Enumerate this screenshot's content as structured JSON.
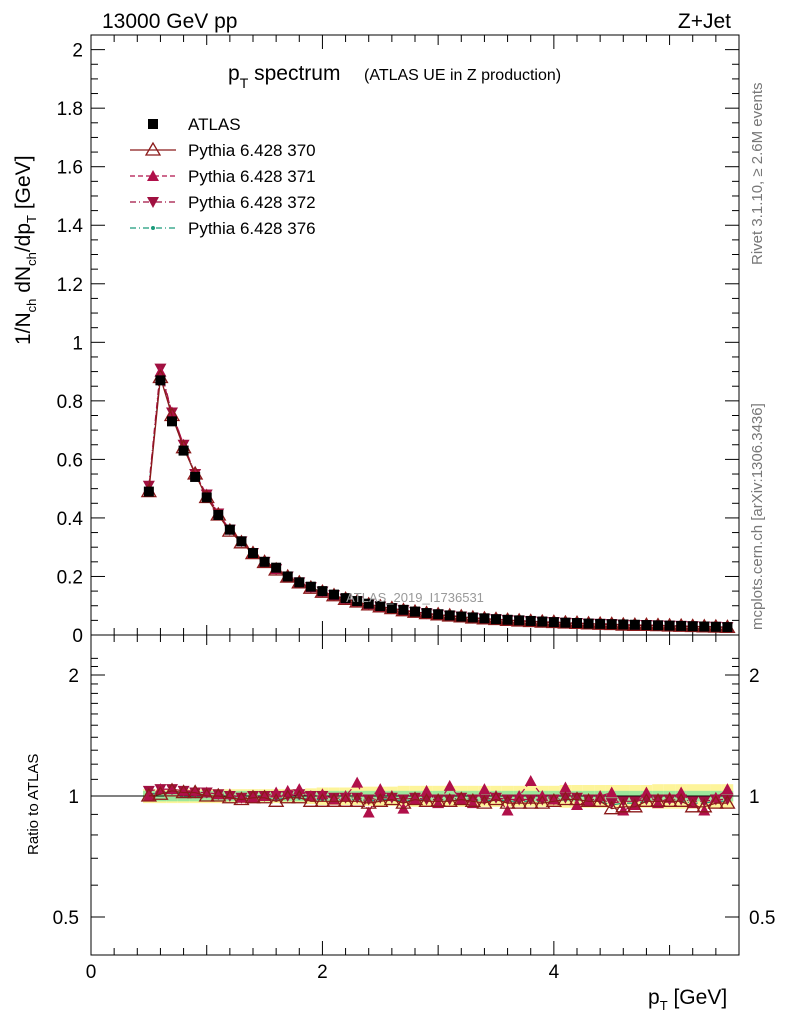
{
  "header": {
    "left": "13000 GeV pp",
    "right": "Z+Jet"
  },
  "side_labels": {
    "rivet": "Rivet 3.1.10, ≥ 2.6M events",
    "mcplots": "mcplots.cern.ch [arXiv:1306.3436]"
  },
  "title": {
    "main": "p",
    "main_sub": "T",
    "main_rest": " spectrum",
    "detail": "(ATLAS UE in Z production)"
  },
  "watermark": "ATLAS_2019_I1736531",
  "upper_ylabel": "1/N_ch dN_ch/dp_T [GeV]",
  "lower_ylabel": "Ratio to ATLAS",
  "xlabel": "p_T [GeV]",
  "legend": [
    {
      "label": "ATLAS",
      "marker": "square",
      "color": "#000000"
    },
    {
      "label": "Pythia 6.428 370",
      "marker": "triangle-open",
      "color": "#8b1a1a",
      "dash": "solid"
    },
    {
      "label": "Pythia 6.428 371",
      "marker": "triangle-up",
      "color": "#b0104a",
      "dash": "dashed"
    },
    {
      "label": "Pythia 6.428 372",
      "marker": "triangle-down",
      "color": "#a01040",
      "dash": "dashdot"
    },
    {
      "label": "Pythia 6.428 376",
      "marker": "dot",
      "color": "#1a9a7a",
      "dash": "dashdot"
    }
  ],
  "chart_data": [
    {
      "type": "line",
      "panel": "main",
      "xlim": [
        0,
        5.6
      ],
      "ylim": [
        0,
        2.05
      ],
      "xticks": [
        "0",
        "2",
        "4"
      ],
      "yticks": [
        "0",
        "0.2",
        "0.4",
        "0.6",
        "0.8",
        "1",
        "1.2",
        "1.4",
        "1.6",
        "1.8",
        "2"
      ],
      "x": [
        0.5,
        0.6,
        0.7,
        0.8,
        0.9,
        1.0,
        1.1,
        1.2,
        1.3,
        1.4,
        1.5,
        1.6,
        1.7,
        1.8,
        1.9,
        2.0,
        2.1,
        2.2,
        2.3,
        2.4,
        2.5,
        2.6,
        2.7,
        2.8,
        2.9,
        3.0,
        3.1,
        3.2,
        3.3,
        3.4,
        3.5,
        3.6,
        3.7,
        3.8,
        3.9,
        4.0,
        4.1,
        4.2,
        4.3,
        4.4,
        4.5,
        4.6,
        4.7,
        4.8,
        4.9,
        5.0,
        5.1,
        5.2,
        5.3,
        5.4,
        5.5
      ],
      "series": [
        {
          "name": "ATLAS",
          "values": [
            0.49,
            0.87,
            0.73,
            0.63,
            0.54,
            0.47,
            0.41,
            0.36,
            0.32,
            0.28,
            0.25,
            0.23,
            0.2,
            0.18,
            0.165,
            0.15,
            0.138,
            0.126,
            0.116,
            0.107,
            0.099,
            0.092,
            0.086,
            0.08,
            0.075,
            0.071,
            0.067,
            0.063,
            0.06,
            0.057,
            0.054,
            0.052,
            0.05,
            0.048,
            0.046,
            0.044,
            0.042,
            0.041,
            0.039,
            0.038,
            0.037,
            0.036,
            0.035,
            0.034,
            0.033,
            0.032,
            0.031,
            0.03,
            0.029,
            0.028,
            0.027
          ]
        },
        {
          "name": "Pythia 6.428 370",
          "values": [
            0.49,
            0.88,
            0.75,
            0.64,
            0.55,
            0.47,
            0.41,
            0.355,
            0.315,
            0.278,
            0.248,
            0.222,
            0.198,
            0.178,
            0.16,
            0.146,
            0.134,
            0.122,
            0.113,
            0.103,
            0.096,
            0.09,
            0.083,
            0.078,
            0.073,
            0.069,
            0.065,
            0.062,
            0.058,
            0.055,
            0.053,
            0.05,
            0.048,
            0.046,
            0.044,
            0.043,
            0.041,
            0.04,
            0.038,
            0.037,
            0.036,
            0.034,
            0.033,
            0.033,
            0.032,
            0.031,
            0.03,
            0.029,
            0.028,
            0.027,
            0.026
          ]
        },
        {
          "name": "Pythia 6.428 371",
          "values": [
            0.5,
            0.9,
            0.76,
            0.65,
            0.55,
            0.48,
            0.415,
            0.36,
            0.32,
            0.28,
            0.25,
            0.225,
            0.2,
            0.18,
            0.163,
            0.148,
            0.136,
            0.124,
            0.115,
            0.105,
            0.097,
            0.091,
            0.085,
            0.079,
            0.074,
            0.07,
            0.066,
            0.063,
            0.059,
            0.056,
            0.054,
            0.051,
            0.049,
            0.047,
            0.045,
            0.044,
            0.042,
            0.041,
            0.039,
            0.038,
            0.037,
            0.035,
            0.034,
            0.034,
            0.033,
            0.032,
            0.031,
            0.03,
            0.029,
            0.028,
            0.027
          ]
        },
        {
          "name": "Pythia 6.428 372",
          "values": [
            0.51,
            0.91,
            0.76,
            0.65,
            0.55,
            0.48,
            0.415,
            0.36,
            0.32,
            0.28,
            0.25,
            0.225,
            0.2,
            0.18,
            0.163,
            0.148,
            0.136,
            0.124,
            0.115,
            0.105,
            0.097,
            0.091,
            0.085,
            0.079,
            0.074,
            0.07,
            0.066,
            0.063,
            0.059,
            0.056,
            0.054,
            0.051,
            0.049,
            0.047,
            0.045,
            0.044,
            0.042,
            0.041,
            0.039,
            0.038,
            0.037,
            0.035,
            0.034,
            0.034,
            0.033,
            0.032,
            0.031,
            0.03,
            0.029,
            0.028,
            0.027
          ]
        },
        {
          "name": "Pythia 6.428 376",
          "values": [
            0.5,
            0.89,
            0.75,
            0.64,
            0.55,
            0.47,
            0.41,
            0.356,
            0.316,
            0.279,
            0.249,
            0.223,
            0.199,
            0.179,
            0.162,
            0.147,
            0.135,
            0.123,
            0.114,
            0.104,
            0.096,
            0.09,
            0.084,
            0.078,
            0.073,
            0.069,
            0.065,
            0.062,
            0.058,
            0.055,
            0.053,
            0.05,
            0.048,
            0.046,
            0.044,
            0.043,
            0.041,
            0.04,
            0.038,
            0.037,
            0.036,
            0.034,
            0.033,
            0.033,
            0.032,
            0.031,
            0.03,
            0.029,
            0.028,
            0.027,
            0.026
          ]
        }
      ]
    },
    {
      "type": "scatter",
      "panel": "ratio",
      "xlim": [
        0,
        5.6
      ],
      "ylim": [
        0.35,
        2.3
      ],
      "yticks": [
        "0.5",
        "1",
        "2"
      ],
      "x": [
        0.5,
        0.6,
        0.7,
        0.8,
        0.9,
        1.0,
        1.1,
        1.2,
        1.3,
        1.4,
        1.5,
        1.6,
        1.7,
        1.8,
        1.9,
        2.0,
        2.1,
        2.2,
        2.3,
        2.4,
        2.5,
        2.6,
        2.7,
        2.8,
        2.9,
        3.0,
        3.1,
        3.2,
        3.3,
        3.4,
        3.5,
        3.6,
        3.7,
        3.8,
        3.9,
        4.0,
        4.1,
        4.2,
        4.3,
        4.4,
        4.5,
        4.6,
        4.7,
        4.8,
        4.9,
        5.0,
        5.1,
        5.2,
        5.3,
        5.4,
        5.5
      ],
      "band_inner": [
        0.03,
        0.03,
        0.03,
        0.03,
        0.03,
        0.03,
        0.03,
        0.03,
        0.03,
        0.03,
        0.03,
        0.03,
        0.03,
        0.03,
        0.03,
        0.03,
        0.03,
        0.03,
        0.03,
        0.03,
        0.03,
        0.03,
        0.03,
        0.03,
        0.03,
        0.03,
        0.03,
        0.03,
        0.03,
        0.03,
        0.03,
        0.03,
        0.03,
        0.03,
        0.03,
        0.03,
        0.03,
        0.03,
        0.03,
        0.03,
        0.03,
        0.03,
        0.03,
        0.03,
        0.03,
        0.03,
        0.03,
        0.03,
        0.03,
        0.03,
        0.03
      ],
      "band_outer": [
        0.04,
        0.04,
        0.04,
        0.04,
        0.04,
        0.04,
        0.04,
        0.04,
        0.04,
        0.04,
        0.04,
        0.04,
        0.04,
        0.04,
        0.045,
        0.05,
        0.05,
        0.05,
        0.05,
        0.055,
        0.055,
        0.055,
        0.06,
        0.06,
        0.06,
        0.06,
        0.06,
        0.06,
        0.06,
        0.06,
        0.06,
        0.06,
        0.06,
        0.06,
        0.06,
        0.06,
        0.065,
        0.065,
        0.065,
        0.065,
        0.065,
        0.065,
        0.065,
        0.065,
        0.07,
        0.07,
        0.07,
        0.07,
        0.07,
        0.07,
        0.07
      ],
      "series": [
        {
          "name": "Pythia 6.428 370",
          "values": [
            1.0,
            1.01,
            1.03,
            1.02,
            1.02,
            1.0,
            1.0,
            0.99,
            0.98,
            0.99,
            0.99,
            0.97,
            0.99,
            0.99,
            0.97,
            0.97,
            0.97,
            0.97,
            0.97,
            0.96,
            0.97,
            0.98,
            0.96,
            0.98,
            0.97,
            0.97,
            0.97,
            0.98,
            0.97,
            0.96,
            0.98,
            0.96,
            0.96,
            0.96,
            0.96,
            0.97,
            0.98,
            0.98,
            0.97,
            0.97,
            0.93,
            0.94,
            0.94,
            0.97,
            0.97,
            0.97,
            0.97,
            0.94,
            0.94,
            0.96,
            0.96
          ]
        },
        {
          "name": "Pythia 6.428 371",
          "values": [
            1.0,
            1.04,
            1.04,
            1.03,
            1.03,
            1.02,
            1.01,
            1.01,
            0.99,
            0.99,
            1.0,
            1.02,
            1.03,
            1.04,
            1.0,
            1.01,
            0.98,
            1.0,
            1.08,
            0.91,
            1.04,
            1.0,
            0.93,
            0.98,
            1.03,
            0.96,
            1.06,
            0.98,
            0.96,
            1.04,
            1.0,
            0.92,
            1.0,
            1.09,
            1.0,
            0.98,
            1.05,
            0.95,
            0.97,
            1.0,
            1.02,
            0.92,
            0.95,
            1.02,
            0.96,
            0.99,
            1.02,
            0.96,
            0.92,
            0.99,
            1.04
          ]
        },
        {
          "name": "Pythia 6.428 372",
          "values": [
            1.03,
            1.04,
            1.04,
            1.03,
            1.02,
            1.02,
            1.01,
            1.0,
            0.99,
            1.0,
            1.0,
            1.0,
            1.0,
            1.01,
            1.0,
            1.0,
            0.99,
            0.99,
            0.99,
            0.98,
            0.99,
            0.99,
            0.98,
            0.99,
            0.98,
            0.98,
            0.98,
            0.99,
            0.98,
            0.98,
            0.99,
            0.98,
            0.98,
            0.98,
            0.98,
            0.98,
            0.99,
            0.99,
            0.98,
            0.98,
            0.96,
            0.97,
            0.97,
            0.98,
            0.98,
            0.98,
            0.98,
            0.97,
            0.97,
            0.98,
            0.98
          ]
        },
        {
          "name": "Pythia 6.428 376",
          "values": [
            1.01,
            1.02,
            1.02,
            1.02,
            1.01,
            1.0,
            1.0,
            0.99,
            0.99,
            0.99,
            0.99,
            0.98,
            0.99,
            0.99,
            0.98,
            0.98,
            0.98,
            0.98,
            0.98,
            0.97,
            0.98,
            0.98,
            0.97,
            0.98,
            0.98,
            0.98,
            0.98,
            0.98,
            0.98,
            0.97,
            0.98,
            0.97,
            0.97,
            0.97,
            0.97,
            0.98,
            0.98,
            0.98,
            0.97,
            0.97,
            0.95,
            0.96,
            0.96,
            0.97,
            0.97,
            0.97,
            0.97,
            0.96,
            0.96,
            0.97,
            0.97
          ]
        }
      ]
    }
  ]
}
